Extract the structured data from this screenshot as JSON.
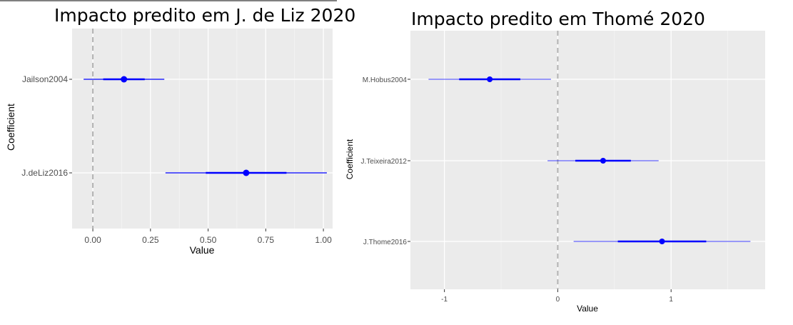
{
  "chart_data": [
    {
      "type": "coefficient-plot",
      "title": "Impacto predito em J. de Liz 2020",
      "xlabel": "Value",
      "ylabel": "Coefficient",
      "xlim": [
        -0.09,
        1.04
      ],
      "xticks": [
        "0.00",
        "0.25",
        "0.50",
        "0.75",
        "1.00"
      ],
      "xtick_values": [
        0,
        0.25,
        0.5,
        0.75,
        1.0
      ],
      "reference_line": 0,
      "grid": true,
      "color": "#0000ff",
      "coefficients": [
        {
          "name": "Jailson2004",
          "estimate": 0.135,
          "inner": [
            0.045,
            0.225
          ],
          "outer": [
            -0.04,
            0.31
          ]
        },
        {
          "name": "J.deLiz2016",
          "estimate": 0.665,
          "inner": [
            0.49,
            0.84
          ],
          "outer": [
            0.315,
            1.015
          ]
        }
      ]
    },
    {
      "type": "coefficient-plot",
      "title": "Impacto predito em Thomé 2020",
      "xlabel": "Value",
      "ylabel": "Coefficient",
      "xlim": [
        -1.3,
        1.83
      ],
      "xticks": [
        "-1",
        "0",
        "1"
      ],
      "xtick_values": [
        -1,
        0,
        1
      ],
      "reference_line": 0,
      "grid": true,
      "color": "#0000ff",
      "coefficients": [
        {
          "name": "M.Hobus2004",
          "estimate": -0.6,
          "inner": [
            -0.87,
            -0.33
          ],
          "outer": [
            -1.14,
            -0.06
          ]
        },
        {
          "name": "J.Teixeira2012",
          "estimate": 0.4,
          "inner": [
            0.155,
            0.645
          ],
          "outer": [
            -0.09,
            0.89
          ]
        },
        {
          "name": "J.Thome2016",
          "estimate": 0.92,
          "inner": [
            0.53,
            1.31
          ],
          "outer": [
            0.14,
            1.7
          ]
        }
      ]
    }
  ]
}
